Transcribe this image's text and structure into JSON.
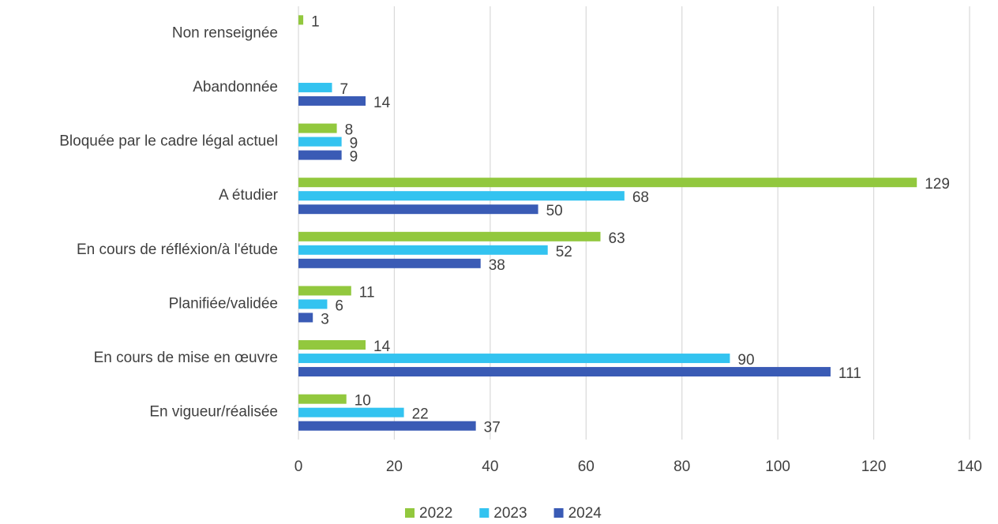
{
  "chart_data": {
    "type": "hbar",
    "categories": [
      "Non renseignée",
      "Abandonnée",
      "Bloquée par le cadre légal actuel",
      "A étudier",
      "En cours de réfléxion/à l'étude",
      "Planifiée/validée",
      "En cours de mise en œuvre",
      "En vigueur/réalisée"
    ],
    "series": [
      {
        "name": "2022",
        "color": "#92c83e",
        "values": [
          1,
          null,
          8,
          129,
          63,
          11,
          14,
          10
        ]
      },
      {
        "name": "2023",
        "color": "#33c3f0",
        "values": [
          null,
          7,
          9,
          68,
          52,
          6,
          90,
          22
        ]
      },
      {
        "name": "2024",
        "color": "#3a5bb5",
        "values": [
          null,
          14,
          9,
          50,
          38,
          3,
          111,
          37
        ]
      }
    ],
    "xlim": [
      0,
      140
    ],
    "xticks": [
      0,
      20,
      40,
      60,
      80,
      100,
      120,
      140
    ],
    "grid": true,
    "legend": "bottom"
  }
}
